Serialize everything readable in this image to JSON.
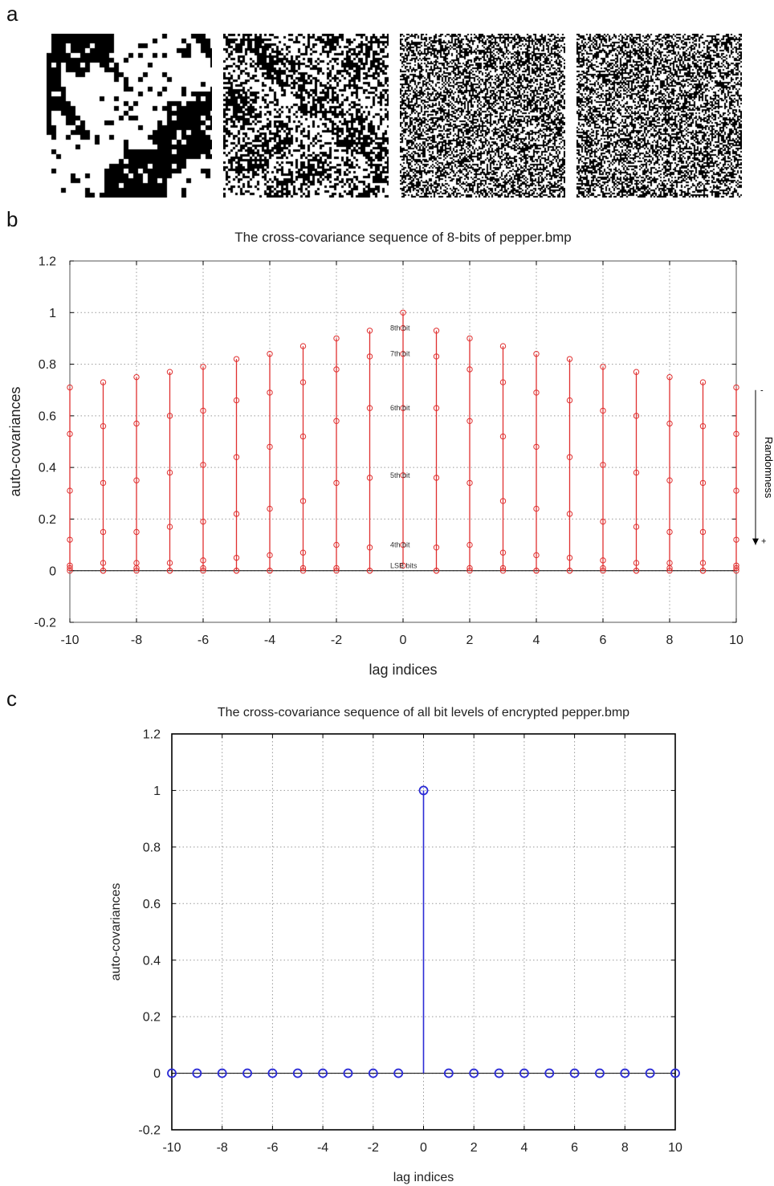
{
  "panels": {
    "a": {
      "letter": "a",
      "images": [
        {
          "name": "bit-plane-image-1",
          "density": 0.55,
          "scale": 6
        },
        {
          "name": "bit-plane-image-2",
          "density": 0.5,
          "scale": 3
        },
        {
          "name": "bit-plane-image-3",
          "density": 0.5,
          "scale": 2
        },
        {
          "name": "bit-plane-image-4",
          "density": 0.5,
          "scale": 2
        }
      ]
    },
    "b": {
      "letter": "b"
    },
    "c": {
      "letter": "c"
    }
  },
  "chart_data": [
    {
      "type": "stem",
      "title": "The cross-covariance sequence of 8-bits of pepper.bmp",
      "xlabel": "lag indices",
      "ylabel": "auto-covariances",
      "xlim": [
        -10,
        10
      ],
      "ylim": [
        -0.2,
        1.2
      ],
      "xticks": [
        -10,
        -8,
        -6,
        -4,
        -2,
        0,
        2,
        4,
        6,
        8,
        10
      ],
      "yticks": [
        -0.2,
        0,
        0.2,
        0.4,
        0.6,
        0.8,
        1,
        1.2
      ],
      "grid": true,
      "color": "#e03030",
      "x": [
        -10,
        -9,
        -8,
        -7,
        -6,
        -5,
        -4,
        -3,
        -2,
        -1,
        0,
        1,
        2,
        3,
        4,
        5,
        6,
        7,
        8,
        9,
        10
      ],
      "series": [
        {
          "values": [
            0.71,
            0.73,
            0.75,
            0.77,
            0.79,
            0.82,
            0.84,
            0.87,
            0.9,
            0.93,
            1.0,
            0.93,
            0.9,
            0.87,
            0.84,
            0.82,
            0.79,
            0.77,
            0.75,
            0.73,
            0.71
          ]
        },
        {
          "values": [
            0.53,
            0.56,
            0.57,
            0.6,
            0.62,
            0.66,
            0.69,
            0.73,
            0.78,
            0.83,
            0.94,
            0.83,
            0.78,
            0.73,
            0.69,
            0.66,
            0.62,
            0.6,
            0.57,
            0.56,
            0.53
          ]
        },
        {
          "values": [
            0.31,
            0.34,
            0.35,
            0.38,
            0.41,
            0.44,
            0.48,
            0.52,
            0.58,
            0.63,
            0.84,
            0.63,
            0.58,
            0.52,
            0.48,
            0.44,
            0.41,
            0.38,
            0.35,
            0.34,
            0.31
          ]
        },
        {
          "values": [
            0.12,
            0.15,
            0.15,
            0.17,
            0.19,
            0.22,
            0.24,
            0.27,
            0.34,
            0.36,
            0.63,
            0.36,
            0.34,
            0.27,
            0.24,
            0.22,
            0.19,
            0.17,
            0.15,
            0.15,
            0.12
          ]
        },
        {
          "values": [
            0.02,
            0.03,
            0.03,
            0.03,
            0.04,
            0.05,
            0.06,
            0.07,
            0.1,
            0.09,
            0.37,
            0.09,
            0.1,
            0.07,
            0.06,
            0.05,
            0.04,
            0.03,
            0.03,
            0.03,
            0.02
          ]
        },
        {
          "values": [
            0.01,
            0.0,
            0.01,
            0.0,
            0.01,
            0.0,
            0.0,
            0.01,
            0.01,
            0.0,
            0.1,
            0.0,
            0.01,
            0.01,
            0.0,
            0.0,
            0.01,
            0.0,
            0.01,
            0.0,
            0.01
          ]
        },
        {
          "values": [
            0.0,
            0.0,
            0.0,
            0.0,
            0.0,
            0.0,
            0.0,
            0.0,
            0.0,
            0.0,
            0.02,
            0.0,
            0.0,
            0.0,
            0.0,
            0.0,
            0.0,
            0.0,
            0.0,
            0.0,
            0.0
          ]
        }
      ],
      "annotations": [
        {
          "text": "8th bit",
          "x": 0,
          "y": 0.94
        },
        {
          "text": "7th bit",
          "x": 0,
          "y": 0.84
        },
        {
          "text": "6th bit",
          "x": 0,
          "y": 0.63
        },
        {
          "text": "5th bit",
          "x": 0,
          "y": 0.37
        },
        {
          "text": "4th bit",
          "x": 0,
          "y": 0.1
        },
        {
          "text": "LSB bits",
          "x": 0,
          "y": 0.02
        }
      ],
      "randomness_arrow": {
        "label": "Randomness",
        "top": "-",
        "bottom": "+",
        "from": 0.7,
        "to": 0.1
      }
    },
    {
      "type": "stem",
      "title": "The cross-covariance sequence of all bit levels of encrypted pepper.bmp",
      "xlabel": "lag indices",
      "ylabel": "auto-covariances",
      "xlim": [
        -10,
        10
      ],
      "ylim": [
        -0.2,
        1.2
      ],
      "xticks": [
        -10,
        -8,
        -6,
        -4,
        -2,
        0,
        2,
        4,
        6,
        8,
        10
      ],
      "yticks": [
        -0.2,
        0,
        0.2,
        0.4,
        0.6,
        0.8,
        1,
        1.2
      ],
      "grid": true,
      "color": "#2b2bd6",
      "x": [
        -10,
        -9,
        -8,
        -7,
        -6,
        -5,
        -4,
        -3,
        -2,
        -1,
        0,
        1,
        2,
        3,
        4,
        5,
        6,
        7,
        8,
        9,
        10
      ],
      "values": [
        0.0,
        0.0,
        0.0,
        0.0,
        0.0,
        0.0,
        0.0,
        0.0,
        0.0,
        0.0,
        1.0,
        0.0,
        0.0,
        0.0,
        0.0,
        0.0,
        0.0,
        0.0,
        0.0,
        0.0,
        0.0
      ]
    }
  ]
}
